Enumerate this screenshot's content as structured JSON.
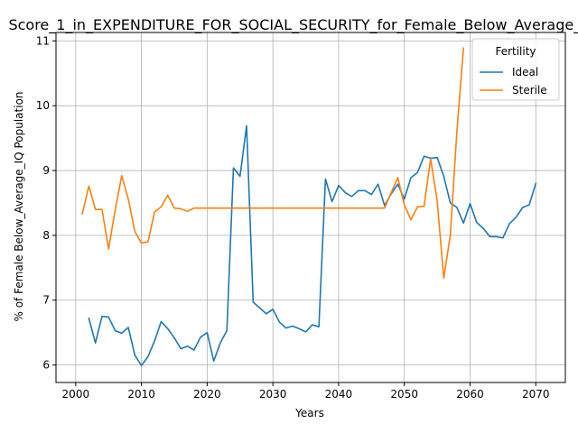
{
  "chart_data": {
    "type": "line",
    "title": "Score_1_in_EXPENDITURE_FOR_SOCIAL_SECURITY_for_Female_Below_Average_IQ",
    "xlabel": "Years",
    "ylabel": "% of Female Below_Average_IQ Population",
    "xlim": [
      1997,
      2074.5
    ],
    "ylim": [
      5.73,
      11.13
    ],
    "xticks": [
      2000,
      2010,
      2020,
      2030,
      2040,
      2050,
      2060,
      2070
    ],
    "yticks": [
      6,
      7,
      8,
      9,
      10,
      11
    ],
    "grid": true,
    "legend": {
      "title": "Fertility",
      "placement": "top-right"
    },
    "series": [
      {
        "name": "Ideal",
        "color": "#1f77b4",
        "x": [
          2002,
          2003,
          2004,
          2005,
          2006,
          2007,
          2008,
          2009,
          2010,
          2011,
          2012,
          2013,
          2014,
          2015,
          2016,
          2017,
          2018,
          2019,
          2020,
          2021,
          2022,
          2023,
          2024,
          2025,
          2026,
          2027,
          2028,
          2029,
          2030,
          2031,
          2032,
          2033,
          2034,
          2035,
          2036,
          2037,
          2038,
          2039,
          2040,
          2041,
          2042,
          2043,
          2044,
          2045,
          2046,
          2047,
          2048,
          2049,
          2050,
          2051,
          2052,
          2053,
          2054,
          2055,
          2056,
          2057,
          2058,
          2059,
          2060,
          2061,
          2062,
          2063,
          2064,
          2065,
          2066,
          2067,
          2068,
          2069,
          2070
        ],
        "y": [
          6.72,
          6.34,
          6.75,
          6.74,
          6.53,
          6.49,
          6.58,
          6.15,
          5.99,
          6.13,
          6.37,
          6.67,
          6.56,
          6.42,
          6.25,
          6.29,
          6.23,
          6.43,
          6.5,
          6.06,
          6.34,
          6.53,
          9.04,
          8.91,
          9.69,
          6.97,
          6.88,
          6.79,
          6.86,
          6.66,
          6.57,
          6.6,
          6.56,
          6.51,
          6.62,
          6.59,
          8.87,
          8.52,
          8.77,
          8.66,
          8.6,
          8.69,
          8.69,
          8.63,
          8.79,
          8.46,
          8.64,
          8.79,
          8.56,
          8.89,
          8.97,
          9.22,
          9.19,
          9.2,
          8.91,
          8.5,
          8.43,
          8.19,
          8.49,
          8.2,
          8.11,
          7.98,
          7.98,
          7.96,
          8.18,
          8.28,
          8.43,
          8.47,
          8.8
        ]
      },
      {
        "name": "Sterile",
        "color": "#ff7f0e",
        "x": [
          2001,
          2002,
          2003,
          2004,
          2005,
          2006,
          2007,
          2008,
          2009,
          2010,
          2011,
          2012,
          2013,
          2014,
          2015,
          2016,
          2017,
          2018,
          2019,
          2020,
          2021,
          2022,
          2023,
          2024,
          2025,
          2026,
          2027,
          2028,
          2029,
          2030,
          2031,
          2032,
          2033,
          2034,
          2035,
          2036,
          2037,
          2038,
          2039,
          2040,
          2041,
          2042,
          2043,
          2044,
          2045,
          2046,
          2047,
          2048,
          2049,
          2050,
          2051,
          2052,
          2053,
          2054,
          2055,
          2056,
          2057,
          2058,
          2059
        ],
        "y": [
          8.33,
          8.76,
          8.4,
          8.4,
          7.79,
          8.39,
          8.92,
          8.56,
          8.06,
          7.88,
          7.9,
          8.36,
          8.44,
          8.62,
          8.42,
          8.41,
          8.37,
          8.42,
          8.42,
          8.42,
          8.42,
          8.42,
          8.42,
          8.42,
          8.42,
          8.42,
          8.42,
          8.42,
          8.42,
          8.42,
          8.42,
          8.42,
          8.42,
          8.42,
          8.42,
          8.42,
          8.42,
          8.42,
          8.42,
          8.42,
          8.42,
          8.42,
          8.42,
          8.42,
          8.42,
          8.42,
          8.42,
          8.66,
          8.89,
          8.47,
          8.24,
          8.44,
          8.45,
          9.18,
          8.53,
          7.34,
          8.01,
          9.61,
          10.89
        ]
      }
    ]
  }
}
